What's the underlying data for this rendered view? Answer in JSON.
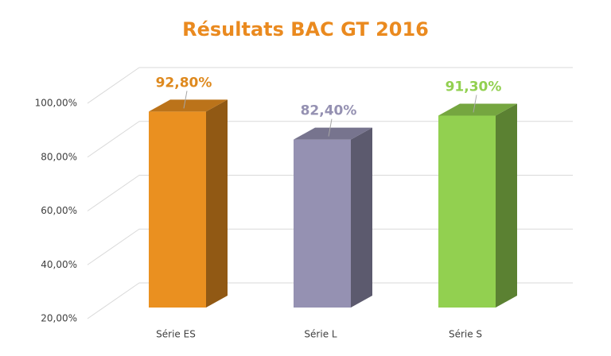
{
  "chart_data": {
    "type": "bar3d",
    "title": "Résultats BAC  GT 2016",
    "categories": [
      "Série ES",
      "Série L",
      "Série S"
    ],
    "values": [
      92.8,
      82.4,
      91.3
    ],
    "value_labels": [
      "92,80%",
      "82,40%",
      "91,30%"
    ],
    "colors": [
      "#ea9020",
      "#9591b2",
      "#92d050"
    ],
    "ylim": [
      20,
      100
    ],
    "yticks": [
      {
        "value": 20,
        "label": "20,00%"
      },
      {
        "value": 40,
        "label": "40,00%"
      },
      {
        "value": 60,
        "label": "60,00%"
      },
      {
        "value": 80,
        "label": "80,00%"
      },
      {
        "value": 100,
        "label": "100,00%"
      }
    ],
    "grid": true
  }
}
